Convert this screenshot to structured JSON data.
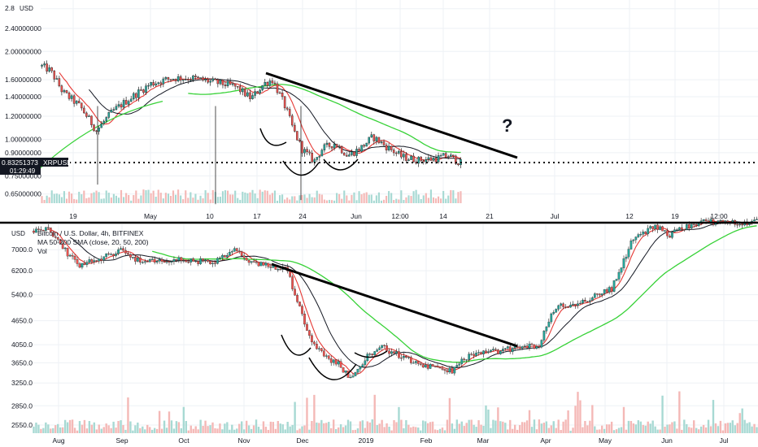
{
  "chart_data": [
    {
      "type": "candlestick",
      "symbol": "XRPUSD",
      "currency_label": "USD",
      "scale": "log",
      "last_price": "0.83251373",
      "countdown": "01:29:49",
      "question_mark": "?",
      "y_ticks": [
        "2.8",
        "2.40000000",
        "2.00000000",
        "1.60000000",
        "1.40000000",
        "1.20000000",
        "1.00000000",
        "0.90000000",
        "0.75000000",
        "0.65000000"
      ],
      "x_ticks": [
        "19",
        "May",
        "10",
        "17",
        "24",
        "Jun",
        "12:00",
        "14",
        "21",
        "Jul",
        "12",
        "19",
        "12:00"
      ],
      "price_path": [
        {
          "t": 0.0,
          "p": 1.78
        },
        {
          "t": 0.02,
          "p": 1.72
        },
        {
          "t": 0.05,
          "p": 1.45
        },
        {
          "t": 0.09,
          "p": 1.3
        },
        {
          "t": 0.13,
          "p": 1.07
        },
        {
          "t": 0.17,
          "p": 1.25
        },
        {
          "t": 0.21,
          "p": 1.38
        },
        {
          "t": 0.26,
          "p": 1.55
        },
        {
          "t": 0.31,
          "p": 1.62
        },
        {
          "t": 0.36,
          "p": 1.62
        },
        {
          "t": 0.41,
          "p": 1.57
        },
        {
          "t": 0.46,
          "p": 1.52
        },
        {
          "t": 0.5,
          "p": 1.38
        },
        {
          "t": 0.53,
          "p": 1.55
        },
        {
          "t": 0.55,
          "p": 1.6
        },
        {
          "t": 0.58,
          "p": 1.3
        },
        {
          "t": 0.6,
          "p": 1.08
        },
        {
          "t": 0.62,
          "p": 0.93
        },
        {
          "t": 0.65,
          "p": 0.84
        },
        {
          "t": 0.67,
          "p": 0.93
        },
        {
          "t": 0.7,
          "p": 0.97
        },
        {
          "t": 0.73,
          "p": 0.88
        },
        {
          "t": 0.76,
          "p": 0.93
        },
        {
          "t": 0.79,
          "p": 1.02
        },
        {
          "t": 0.82,
          "p": 0.95
        },
        {
          "t": 0.86,
          "p": 0.87
        },
        {
          "t": 0.9,
          "p": 0.85
        },
        {
          "t": 0.94,
          "p": 0.86
        },
        {
          "t": 0.97,
          "p": 0.88
        },
        {
          "t": 1.0,
          "p": 0.83
        }
      ]
    },
    {
      "type": "candlestick",
      "title": "Bitcoin / U.S. Dollar, 4h, BITFINEX",
      "indicator": "MA 50-200 SMA (close, 20, 50, 200)",
      "volume_label": "Vol",
      "currency_label": "USD",
      "y_ticks": [
        "7000.0",
        "6200.0",
        "5400.0",
        "4650.0",
        "4050.0",
        "3650.0",
        "3250.0",
        "2850.0",
        "2550.0"
      ],
      "x_ticks": [
        "Aug",
        "Sep",
        "Oct",
        "Nov",
        "Dec",
        "2019",
        "Feb",
        "Mar",
        "Apr",
        "May",
        "Jun",
        "Jul"
      ],
      "price_path": [
        {
          "t": 0.0,
          "p": 7800
        },
        {
          "t": 0.02,
          "p": 7900
        },
        {
          "t": 0.04,
          "p": 7100
        },
        {
          "t": 0.06,
          "p": 6400
        },
        {
          "t": 0.09,
          "p": 6600
        },
        {
          "t": 0.12,
          "p": 7000
        },
        {
          "t": 0.15,
          "p": 6500
        },
        {
          "t": 0.2,
          "p": 6600
        },
        {
          "t": 0.25,
          "p": 6500
        },
        {
          "t": 0.28,
          "p": 7000
        },
        {
          "t": 0.3,
          "p": 6450
        },
        {
          "t": 0.35,
          "p": 6300
        },
        {
          "t": 0.36,
          "p": 5500
        },
        {
          "t": 0.38,
          "p": 4300
        },
        {
          "t": 0.4,
          "p": 3800
        },
        {
          "t": 0.42,
          "p": 3650
        },
        {
          "t": 0.44,
          "p": 3300
        },
        {
          "t": 0.46,
          "p": 3800
        },
        {
          "t": 0.48,
          "p": 4000
        },
        {
          "t": 0.5,
          "p": 3850
        },
        {
          "t": 0.52,
          "p": 3700
        },
        {
          "t": 0.56,
          "p": 3500
        },
        {
          "t": 0.58,
          "p": 3500
        },
        {
          "t": 0.6,
          "p": 3800
        },
        {
          "t": 0.64,
          "p": 3900
        },
        {
          "t": 0.68,
          "p": 4000
        },
        {
          "t": 0.7,
          "p": 4050
        },
        {
          "t": 0.72,
          "p": 5000
        },
        {
          "t": 0.76,
          "p": 5200
        },
        {
          "t": 0.8,
          "p": 5600
        },
        {
          "t": 0.83,
          "p": 7500
        },
        {
          "t": 0.86,
          "p": 8000
        },
        {
          "t": 0.88,
          "p": 7600
        },
        {
          "t": 0.9,
          "p": 8000
        },
        {
          "t": 0.92,
          "p": 8200
        }
      ]
    }
  ],
  "colors": {
    "up": "#26a69a",
    "down": "#ef5350",
    "ma_red": "#e53935",
    "ma_black": "#131722",
    "ma_green": "#38d238",
    "grid": "#eef1f5",
    "axis_text": "#131722"
  }
}
